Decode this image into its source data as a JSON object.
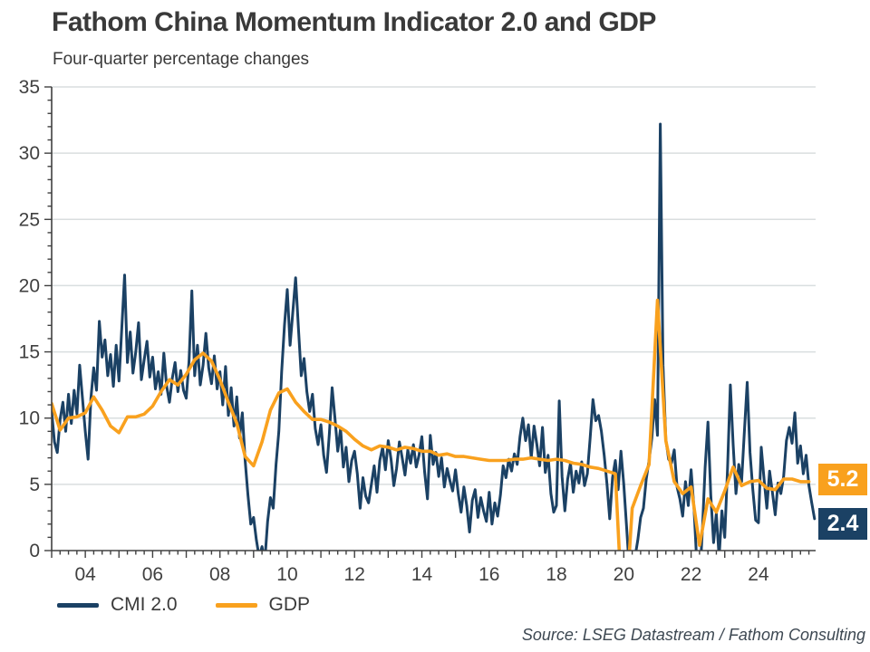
{
  "source_note": "Source: LSEG Datastream / Fathom Consulting",
  "chart_data": {
    "type": "line",
    "title": "Fathom China Momentum Indicator 2.0 and GDP",
    "subtitle": "Four-quarter percentage changes",
    "xlabel": "",
    "ylabel": "",
    "ylim": [
      0,
      35
    ],
    "ytick_step": 5,
    "y_minor_step": 1,
    "xlim": [
      2003.0,
      2025.7
    ],
    "x_minor_step": 0.25,
    "xticks": {
      "positions": [
        2004,
        2006,
        2008,
        2010,
        2012,
        2014,
        2016,
        2018,
        2020,
        2022,
        2024
      ],
      "labels": [
        "04",
        "06",
        "08",
        "10",
        "12",
        "14",
        "16",
        "18",
        "20",
        "22",
        "24"
      ]
    },
    "grid": "horizontal",
    "grid_color": "#d9dedf",
    "axis_color": "#404040",
    "legend_position": "bottom-left",
    "series": [
      {
        "name": "CMI 2.0",
        "color": "#1b4164",
        "width": 3,
        "frequency": "monthly",
        "x_start": 2003.0,
        "x_interval": 0.08333333,
        "values": [
          10.5,
          8.2,
          7.4,
          9.9,
          11.2,
          9.0,
          11.8,
          9.6,
          12.1,
          10.3,
          14.0,
          11.5,
          9.0,
          6.9,
          11.5,
          13.8,
          12.1,
          17.3,
          14.6,
          15.9,
          13.2,
          14.8,
          12.4,
          15.5,
          12.8,
          16.8,
          20.8,
          14.2,
          16.5,
          13.4,
          15.0,
          17.2,
          12.9,
          14.4,
          15.8,
          13.1,
          14.6,
          12.2,
          13.5,
          11.8,
          14.9,
          12.4,
          11.2,
          13.0,
          14.2,
          12.0,
          13.6,
          12.1,
          11.5,
          14.3,
          19.6,
          13.2,
          15.5,
          12.5,
          14.0,
          16.4,
          13.8,
          12.6,
          14.7,
          12.2,
          13.5,
          11.0,
          13.9,
          10.2,
          12.3,
          9.4,
          11.6,
          8.5,
          10.4,
          6.8,
          4.2,
          2.0,
          2.5,
          0.8,
          -0.5,
          0.3,
          -0.8,
          2.2,
          4.0,
          3.2,
          6.5,
          9.0,
          13.5,
          17.0,
          19.7,
          15.5,
          18.0,
          20.6,
          16.8,
          13.2,
          14.5,
          12.0,
          10.5,
          11.8,
          9.2,
          8.0,
          9.5,
          7.2,
          5.9,
          8.8,
          12.3,
          10.0,
          7.5,
          9.2,
          6.3,
          7.8,
          5.2,
          6.8,
          7.5,
          5.8,
          3.2,
          5.5,
          4.1,
          3.6,
          5.0,
          6.4,
          4.4,
          6.8,
          7.8,
          6.1,
          8.3,
          6.9,
          4.9,
          6.2,
          8.2,
          7.0,
          5.7,
          7.6,
          6.6,
          8.0,
          6.3,
          7.2,
          8.6,
          5.9,
          3.9,
          8.7,
          6.5,
          7.4,
          5.6,
          7.0,
          4.8,
          6.2,
          5.3,
          4.5,
          6.1,
          4.3,
          2.9,
          4.8,
          3.4,
          1.4,
          3.8,
          4.6,
          2.5,
          4.0,
          3.0,
          2.2,
          4.4,
          2.0,
          3.6,
          2.6,
          4.2,
          6.4,
          5.5,
          6.9,
          6.0,
          7.3,
          6.5,
          8.6,
          10.0,
          8.3,
          9.5,
          7.0,
          9.4,
          8.0,
          6.4,
          9.3,
          5.9,
          7.2,
          4.3,
          2.9,
          3.4,
          11.3,
          5.6,
          3.0,
          5.4,
          6.6,
          4.4,
          6.0,
          5.1,
          6.7,
          4.9,
          5.8,
          8.5,
          11.4,
          9.8,
          10.2,
          9.0,
          7.2,
          5.0,
          2.4,
          5.5,
          6.8,
          4.6,
          7.5,
          5.0,
          1.8,
          -1.5,
          -3.0,
          -0.5,
          0.8,
          2.5,
          3.2,
          5.4,
          6.8,
          8.5,
          11.4,
          8.7,
          32.2,
          14.0,
          8.4,
          6.9,
          6.6,
          7.6,
          4.8,
          3.9,
          2.6,
          5.2,
          3.4,
          6.1,
          3.3,
          -0.8,
          -2.5,
          1.5,
          6.3,
          9.7,
          4.2,
          0.6,
          2.8,
          -0.5,
          3.0,
          1.0,
          6.2,
          12.5,
          8.0,
          4.3,
          6.5,
          5.2,
          9.0,
          12.7,
          7.4,
          4.6,
          2.3,
          2.1,
          7.8,
          5.4,
          3.2,
          6.0,
          4.4,
          2.7,
          5.1,
          4.3,
          5.6,
          8.3,
          9.3,
          8.1,
          10.4,
          6.6,
          7.9,
          5.8,
          7.2,
          4.9,
          3.6,
          2.4
        ]
      },
      {
        "name": "GDP",
        "color": "#f9a11e",
        "width": 3.6,
        "frequency": "quarterly",
        "x_start": 2003.0,
        "x_interval": 0.25,
        "values": [
          11.1,
          9.1,
          10.0,
          10.1,
          10.4,
          11.6,
          10.6,
          9.4,
          8.9,
          10.1,
          10.1,
          10.3,
          10.9,
          12.0,
          12.9,
          12.5,
          13.3,
          14.4,
          14.9,
          14.3,
          12.9,
          11.2,
          9.6,
          7.1,
          6.4,
          8.2,
          10.6,
          11.9,
          12.2,
          11.2,
          10.5,
          9.9,
          9.9,
          9.7,
          9.4,
          9.0,
          8.4,
          7.9,
          7.6,
          7.9,
          7.8,
          7.6,
          7.8,
          7.7,
          7.5,
          7.5,
          7.2,
          7.3,
          7.1,
          7.1,
          7.0,
          6.9,
          6.8,
          6.8,
          6.8,
          6.9,
          6.9,
          7.0,
          6.9,
          6.8,
          6.9,
          6.8,
          6.6,
          6.5,
          6.3,
          6.2,
          6.0,
          5.8,
          -6.8,
          3.2,
          4.9,
          6.5,
          18.9,
          8.3,
          5.2,
          4.3,
          4.8,
          0.4,
          3.9,
          2.9,
          4.5,
          6.3,
          4.9,
          5.2,
          5.3,
          4.7,
          4.6,
          5.4,
          5.4,
          5.2,
          5.2
        ]
      }
    ],
    "end_labels": [
      {
        "label": "5.2",
        "value": 5.2,
        "series": "GDP",
        "bg": "#f9a11e",
        "text_color": "#ffffff"
      },
      {
        "label": "2.4",
        "value": 2.4,
        "series": "CMI 2.0",
        "bg": "#1b4164",
        "text_color": "#ffffff"
      }
    ]
  }
}
